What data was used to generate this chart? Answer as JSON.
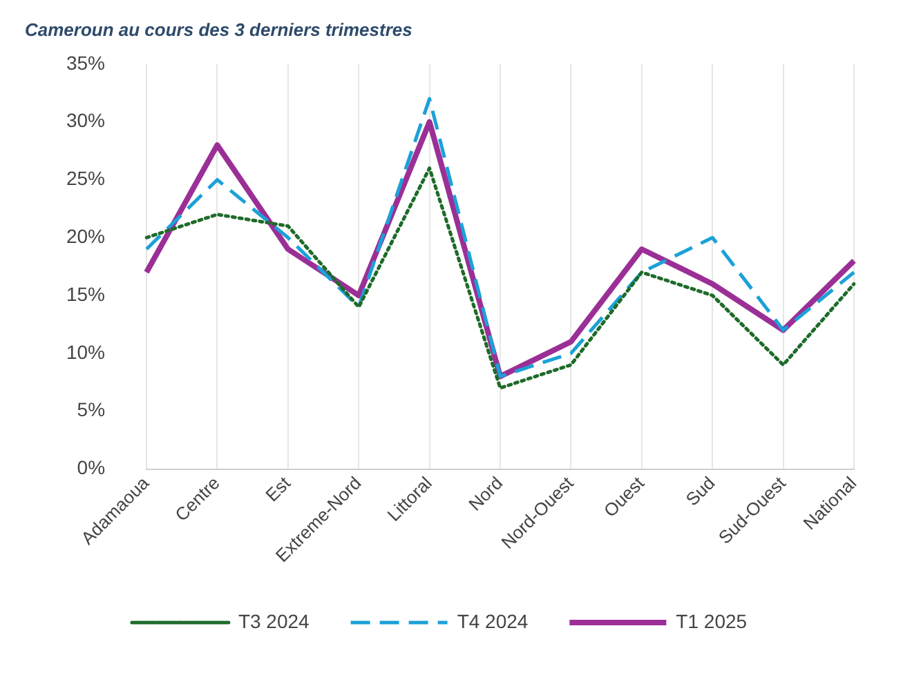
{
  "chart_data": {
    "type": "line",
    "title": "Cameroun au cours des 3 derniers trimestres",
    "categories": [
      "Adamaoua",
      "Centre",
      "Est",
      "Extreme-Nord",
      "Littoral",
      "Nord",
      "Nord-Ouest",
      "Ouest",
      "Sud",
      "Sud-Ouest",
      "National"
    ],
    "series": [
      {
        "name": "T3 2024",
        "color": "#1e6b2a",
        "line_style": "dotted",
        "values": [
          20,
          22,
          21,
          14,
          26,
          7,
          9,
          17,
          15,
          9,
          16
        ]
      },
      {
        "name": "T4 2024",
        "color": "#1ba1d8",
        "line_style": "dashed",
        "values": [
          19,
          25,
          20,
          14,
          32,
          8,
          10,
          17,
          20,
          12,
          17
        ]
      },
      {
        "name": "T1 2025",
        "color": "#9b2f96",
        "line_style": "solid",
        "values": [
          17,
          28,
          19,
          15,
          30,
          8,
          11,
          19,
          16,
          12,
          18
        ]
      }
    ],
    "ylim": [
      0,
      35
    ],
    "yticks": [
      {
        "value": 0,
        "label": "0%"
      },
      {
        "value": 5,
        "label": "5%"
      },
      {
        "value": 10,
        "label": "10%"
      },
      {
        "value": 15,
        "label": "15%"
      },
      {
        "value": 20,
        "label": "20%"
      },
      {
        "value": 25,
        "label": "25%"
      },
      {
        "value": 30,
        "label": "30%"
      },
      {
        "value": 35,
        "label": "35%"
      }
    ],
    "grid": "x",
    "legend": "bottom",
    "marker": "none"
  }
}
